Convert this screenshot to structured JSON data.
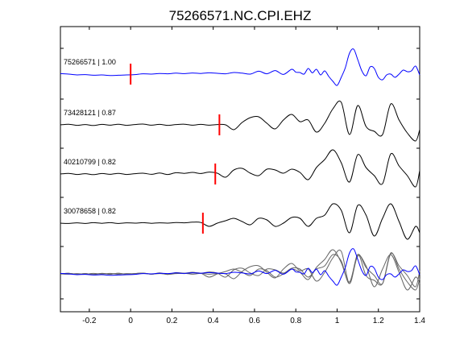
{
  "chart_data": {
    "type": "line",
    "title": "75266571.NC.CPI.EHZ",
    "xlabel": "",
    "ylabel": "",
    "xlim": [
      -0.34,
      1.4
    ],
    "x_ticks": [
      -0.2,
      0,
      0.2,
      0.4,
      0.6,
      0.8,
      1,
      1.2,
      1.4
    ],
    "x_tick_labels": [
      "-0.2",
      "0",
      "0.2",
      "0.4",
      "0.6",
      "0.8",
      "1",
      "1.2",
      "1.4"
    ],
    "grid": false,
    "colors": {
      "reference": "#0000ff",
      "trace": "#000000",
      "overlay": "#666666",
      "pick": "#ff0000"
    },
    "traces": [
      {
        "label": "75266571 | 1.00",
        "color": "#0000ff",
        "pick": 0.0,
        "x": [
          -0.34,
          -0.3,
          -0.26,
          -0.22,
          -0.18,
          -0.14,
          -0.1,
          -0.06,
          -0.02,
          0.02,
          0.06,
          0.1,
          0.14,
          0.18,
          0.22,
          0.26,
          0.3,
          0.34,
          0.38,
          0.42,
          0.46,
          0.5,
          0.54,
          0.58,
          0.62,
          0.66,
          0.7,
          0.74,
          0.78,
          0.8,
          0.82,
          0.84,
          0.86,
          0.88,
          0.9,
          0.92,
          0.94,
          0.96,
          0.98,
          1.0,
          1.02,
          1.04,
          1.06,
          1.08,
          1.1,
          1.12,
          1.14,
          1.16,
          1.18,
          1.2,
          1.22,
          1.24,
          1.26,
          1.28,
          1.3,
          1.32,
          1.34,
          1.36,
          1.38,
          1.4
        ],
        "y": [
          0.03,
          0.0,
          -0.05,
          -0.03,
          -0.07,
          -0.05,
          -0.09,
          -0.07,
          -0.05,
          -0.03,
          0.02,
          0.0,
          0.04,
          0.02,
          0.06,
          0.03,
          0.07,
          0.04,
          0.08,
          0.05,
          0.02,
          0.1,
          0.06,
          0.0,
          0.18,
          0.02,
          0.22,
          -0.02,
          0.3,
          0.12,
          0.1,
          0.0,
          0.35,
          0.08,
          0.3,
          -0.05,
          0.2,
          -0.15,
          -0.45,
          -0.7,
          -0.2,
          0.4,
          1.3,
          1.55,
          0.9,
          0.2,
          -0.1,
          0.45,
          0.35,
          -0.2,
          -0.35,
          -0.05,
          0.0,
          -0.2,
          0.0,
          0.25,
          0.15,
          0.2,
          0.5,
          -0.05
        ]
      },
      {
        "label": "73428121 | 0.87",
        "color": "#000000",
        "pick": 0.43,
        "x": [
          -0.34,
          -0.3,
          -0.26,
          -0.22,
          -0.18,
          -0.14,
          -0.1,
          -0.06,
          -0.02,
          0.02,
          0.06,
          0.1,
          0.14,
          0.18,
          0.22,
          0.26,
          0.3,
          0.34,
          0.38,
          0.42,
          0.46,
          0.5,
          0.54,
          0.58,
          0.62,
          0.66,
          0.7,
          0.74,
          0.78,
          0.82,
          0.86,
          0.9,
          0.94,
          0.98,
          1.02,
          1.06,
          1.1,
          1.14,
          1.18,
          1.22,
          1.26,
          1.3,
          1.34,
          1.38,
          1.4
        ],
        "y": [
          0.0,
          0.04,
          -0.03,
          0.02,
          -0.04,
          0.03,
          -0.02,
          0.04,
          -0.03,
          0.02,
          0.05,
          -0.02,
          0.03,
          -0.03,
          0.02,
          0.04,
          -0.02,
          0.03,
          -0.02,
          0.02,
          0.0,
          -0.3,
          0.15,
          0.45,
          0.5,
          0.1,
          -0.25,
          0.3,
          0.65,
          0.2,
          0.3,
          -0.45,
          0.1,
          1.0,
          1.4,
          -0.6,
          1.2,
          -0.1,
          -0.4,
          -0.6,
          1.3,
          0.3,
          -0.5,
          -1.0,
          -0.3
        ]
      },
      {
        "label": "40210799 | 0.82",
        "color": "#000000",
        "pick": 0.41,
        "x": [
          -0.34,
          -0.3,
          -0.26,
          -0.22,
          -0.18,
          -0.14,
          -0.1,
          -0.06,
          -0.02,
          0.02,
          0.06,
          0.1,
          0.14,
          0.18,
          0.22,
          0.26,
          0.3,
          0.34,
          0.38,
          0.42,
          0.46,
          0.5,
          0.54,
          0.58,
          0.62,
          0.66,
          0.7,
          0.74,
          0.78,
          0.82,
          0.86,
          0.9,
          0.94,
          0.98,
          1.02,
          1.06,
          1.1,
          1.14,
          1.18,
          1.22,
          1.26,
          1.3,
          1.34,
          1.38,
          1.4
        ],
        "y": [
          0.0,
          0.04,
          -0.03,
          0.02,
          -0.04,
          0.03,
          -0.02,
          0.04,
          -0.03,
          0.02,
          0.05,
          -0.02,
          0.06,
          -0.03,
          0.08,
          0.04,
          0.1,
          0.03,
          0.12,
          0.05,
          -0.2,
          0.25,
          0.35,
          0.05,
          -0.1,
          0.3,
          0.25,
          0.05,
          0.3,
          0.1,
          -0.35,
          0.4,
          0.9,
          1.5,
          0.7,
          -0.5,
          1.2,
          0.4,
          -0.1,
          -0.6,
          1.25,
          0.5,
          -0.1,
          -0.8,
          0.2
        ]
      },
      {
        "label": "30078658 | 0.82",
        "color": "#000000",
        "pick": 0.35,
        "x": [
          -0.34,
          -0.3,
          -0.26,
          -0.22,
          -0.18,
          -0.14,
          -0.1,
          -0.06,
          -0.02,
          0.02,
          0.06,
          0.1,
          0.14,
          0.18,
          0.22,
          0.26,
          0.3,
          0.34,
          0.38,
          0.42,
          0.46,
          0.5,
          0.54,
          0.58,
          0.62,
          0.66,
          0.7,
          0.74,
          0.78,
          0.82,
          0.86,
          0.9,
          0.94,
          0.98,
          1.02,
          1.06,
          1.1,
          1.14,
          1.18,
          1.22,
          1.26,
          1.3,
          1.34,
          1.38,
          1.4
        ],
        "y": [
          0.0,
          -0.02,
          0.02,
          -0.02,
          0.03,
          -0.01,
          0.03,
          -0.02,
          0.02,
          0.0,
          0.03,
          -0.01,
          0.02,
          0.0,
          0.04,
          0.02,
          0.06,
          0.04,
          -0.2,
          0.0,
          0.15,
          0.3,
          0.1,
          -0.1,
          0.3,
          0.2,
          -0.2,
          0.0,
          0.35,
          0.3,
          -0.2,
          0.3,
          0.5,
          1.2,
          0.8,
          -0.6,
          1.1,
          0.5,
          -0.8,
          0.3,
          1.2,
          0.1,
          -1.0,
          -0.2,
          -0.6
        ]
      }
    ]
  }
}
